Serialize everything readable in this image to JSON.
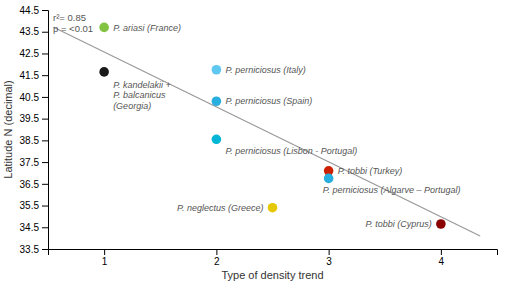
{
  "chart_data": {
    "type": "scatter",
    "xlabel": "Type of density trend",
    "ylabel": "Latitude N (decimal)",
    "annotation": "r²= 0.85\np = <0.01",
    "xlim": [
      0.5,
      4.5
    ],
    "ylim": [
      33.5,
      44.5
    ],
    "xticks": [
      1,
      2,
      3,
      4
    ],
    "yticks": [
      33.5,
      34.5,
      35.5,
      36.5,
      37.5,
      38.5,
      39.5,
      40.5,
      41.5,
      42.5,
      43.5,
      44.5
    ],
    "series": [
      {
        "type": "scatter",
        "x": [
          1,
          1,
          2,
          2,
          2,
          3,
          3,
          2.5,
          4
        ],
        "values": [
          43.7,
          41.65,
          41.75,
          40.3,
          38.55,
          37.1,
          36.75,
          35.4,
          34.65
        ],
        "colors": [
          "#82c341",
          "#1a1a1a",
          "#5ec8f0",
          "#29aee0",
          "#00b5d5",
          "#cc2200",
          "#29aee0",
          "#e5c800",
          "#8b0000"
        ],
        "labels": [
          "P. ariasi (France)",
          "P. kandelakii +\nP. balcanicus\n(Georgia)",
          "P. perniciosus (Italy)",
          "P. perniciosus (Spain)",
          "P. perniciosus (Lisbon - Portugal)",
          "P. tobbi (Turkey)",
          "P. perniciosus (Algarve – Portugal)",
          "P. neglectus (Greece)",
          "P. tobbi (Cyprus)"
        ]
      },
      {
        "type": "line",
        "x": [
          0.55,
          4.35
        ],
        "values": [
          43.7085,
          34.0945
        ],
        "color": "#999999"
      }
    ]
  }
}
